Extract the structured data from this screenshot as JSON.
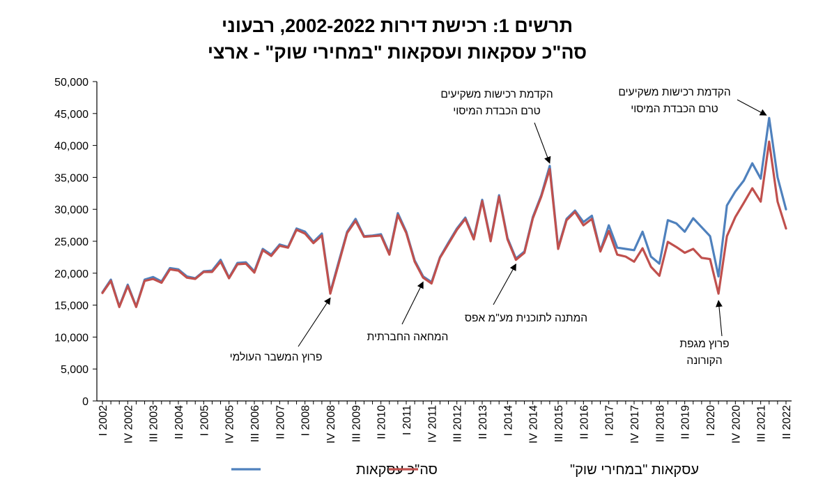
{
  "title_line1": "תרשים 1: רכישת דירות 2002-2022, רבעוני",
  "title_line2": "סה\"כ עסקאות ועסקאות \"במחירי שוק\" - ארצי",
  "colors": {
    "total": "#4F81BD",
    "market": "#C0504D",
    "axis": "#000000",
    "arrow": "#000000"
  },
  "chart_data": {
    "type": "line",
    "ylim": [
      0,
      50000
    ],
    "y_ticks": [
      0,
      5000,
      10000,
      15000,
      20000,
      25000,
      30000,
      35000,
      40000,
      45000,
      50000
    ],
    "y_tick_labels": [
      "0",
      "5,000",
      "10,000",
      "15,000",
      "20,000",
      "25,000",
      "30,000",
      "35,000",
      "40,000",
      "45,000",
      "50,000"
    ],
    "x_tick_labels": [
      "I 2002",
      "IV 2002",
      "III 2003",
      "II 2004",
      "I 2005",
      "IV 2005",
      "III 2006",
      "II 2007",
      "I 2008",
      "IV 2008",
      "III 2009",
      "II 2010",
      "I 2011",
      "IV 2011",
      "III 2012",
      "II 2013",
      "I 2014",
      "IV 2014",
      "III 2015",
      "II 2016",
      "I 2017",
      "IV 2017",
      "III 2018",
      "II 2019",
      "I 2020",
      "IV 2020",
      "III 2021",
      "II 2022"
    ],
    "x_tick_step_quarters": 3,
    "x": [
      "I 2002",
      "II 2002",
      "III 2002",
      "IV 2002",
      "I 2003",
      "II 2003",
      "III 2003",
      "IV 2003",
      "I 2004",
      "II 2004",
      "III 2004",
      "IV 2004",
      "I 2005",
      "II 2005",
      "III 2005",
      "IV 2005",
      "I 2006",
      "II 2006",
      "III 2006",
      "IV 2006",
      "I 2007",
      "II 2007",
      "III 2007",
      "IV 2007",
      "I 2008",
      "II 2008",
      "III 2008",
      "IV 2008",
      "I 2009",
      "II 2009",
      "III 2009",
      "IV 2009",
      "I 2010",
      "II 2010",
      "III 2010",
      "IV 2010",
      "I 2011",
      "II 2011",
      "III 2011",
      "IV 2011",
      "I 2012",
      "II 2012",
      "III 2012",
      "IV 2012",
      "I 2013",
      "II 2013",
      "III 2013",
      "IV 2013",
      "I 2014",
      "II 2014",
      "III 2014",
      "IV 2014",
      "I 2015",
      "II 2015",
      "III 2015",
      "IV 2015",
      "I 2016",
      "II 2016",
      "III 2016",
      "IV 2016",
      "I 2017",
      "II 2017",
      "III 2017",
      "IV 2017",
      "I 2018",
      "II 2018",
      "III 2018",
      "IV 2018",
      "I 2019",
      "II 2019",
      "III 2019",
      "IV 2019",
      "I 2020",
      "II 2020",
      "III 2020",
      "IV 2020",
      "I 2021",
      "II 2021",
      "III 2021",
      "IV 2021",
      "I 2022",
      "II 2022"
    ],
    "series": [
      {
        "name": "סה\"כ עסקאות",
        "color": "#4F81BD",
        "values": [
          17000,
          19000,
          14800,
          18200,
          14800,
          19000,
          19400,
          18700,
          20800,
          20600,
          19500,
          19200,
          20300,
          20400,
          22100,
          19300,
          21600,
          21700,
          20300,
          23800,
          22900,
          24500,
          24100,
          27000,
          26500,
          24900,
          26200,
          17000,
          21800,
          26500,
          28500,
          25800,
          25900,
          26100,
          23100,
          29400,
          26500,
          22000,
          19500,
          18600,
          22500,
          24800,
          27000,
          28700,
          25500,
          31500,
          25200,
          32200,
          25500,
          22300,
          23400,
          28800,
          32200,
          36800,
          24000,
          28500,
          29800,
          28000,
          29000,
          23500,
          27500,
          24000,
          23800,
          23600,
          26500,
          22600,
          21500,
          28300,
          27800,
          26500,
          28600,
          27200,
          25800,
          19500,
          30600,
          32800,
          34500,
          37200,
          34800,
          44300,
          35000,
          30000
        ]
      },
      {
        "name": "עסקאות \"במחירי שוק\"",
        "color": "#C0504D",
        "values": [
          16900,
          18800,
          14700,
          18000,
          14700,
          18800,
          19100,
          18500,
          20600,
          20400,
          19300,
          19100,
          20200,
          20200,
          21800,
          19200,
          21400,
          21500,
          20100,
          23600,
          22700,
          24300,
          24000,
          26800,
          26200,
          24700,
          25900,
          16800,
          21500,
          26300,
          28200,
          25700,
          25800,
          25900,
          22900,
          29100,
          26300,
          21800,
          19300,
          18400,
          22400,
          24600,
          26800,
          28500,
          25300,
          31300,
          25000,
          32000,
          25300,
          22100,
          23200,
          28600,
          32000,
          36300,
          23800,
          28300,
          29600,
          27500,
          28500,
          23400,
          26600,
          22900,
          22600,
          21800,
          23900,
          21000,
          19600,
          24900,
          24100,
          23200,
          23800,
          22400,
          22200,
          16800,
          25800,
          28800,
          31000,
          33300,
          31200,
          40600,
          31200,
          27000
        ]
      }
    ],
    "annotations": [
      {
        "text_lines": [
          "פרוץ המשבר העולמי"
        ],
        "target": "IV 2008"
      },
      {
        "text_lines": [
          "המחאה החברתית"
        ],
        "target": "III 2011"
      },
      {
        "text_lines": [
          "המתנה לתוכנית מע\"מ אפס"
        ],
        "target": "II 2014"
      },
      {
        "text_lines": [
          "הקדמת רכישות משקיעים",
          "טרם הכבדת המיסוי"
        ],
        "target": "II 2015"
      },
      {
        "text_lines": [
          "פרוץ מגפת",
          "הקורונה"
        ],
        "target": "II 2020"
      },
      {
        "text_lines": [
          "הקדמת רכישות משקיעים",
          "טרם הכבדת המיסוי"
        ],
        "target": "IV 2021"
      }
    ],
    "legend_position": "bottom",
    "grid": false
  }
}
